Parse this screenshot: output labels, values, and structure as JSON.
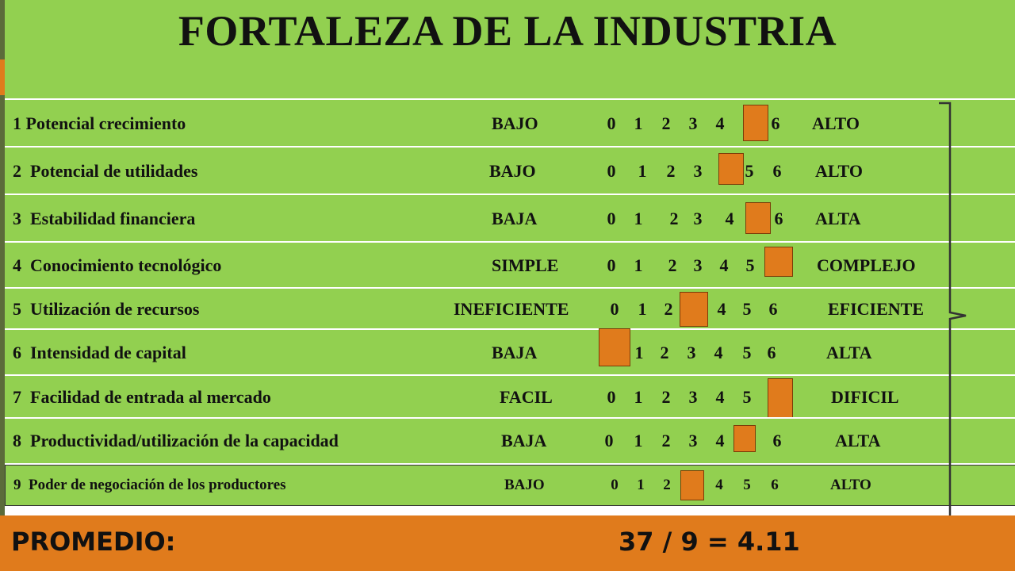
{
  "title": "FORTALEZA DE LA INDUSTRIA",
  "scale": [
    "0",
    "1",
    "2",
    "3",
    "4",
    "5",
    "6"
  ],
  "rows": [
    {
      "label": "1 Potencial crecimiento",
      "low": "BAJO",
      "high": "ALTO",
      "value": 5
    },
    {
      "label": "2  Potencial de utilidades",
      "low": "BAJO",
      "high": "ALTO",
      "value": 4
    },
    {
      "label": "3  Estabilidad financiera",
      "low": "BAJA",
      "high": "ALTA",
      "value": 5
    },
    {
      "label": "4  Conocimiento tecnológico",
      "low": "SIMPLE",
      "high": "COMPLEJO",
      "value": 6
    },
    {
      "label": "5  Utilización de recursos",
      "low": "INEFICIENTE",
      "high": "EFICIENTE",
      "value": 3
    },
    {
      "label": "6  Intensidad de capital",
      "low": "BAJA",
      "high": "ALTA",
      "value": 0
    },
    {
      "label": "7  Facilidad de entrada al mercado",
      "low": "FACIL",
      "high": "DIFICIL",
      "value": 6
    },
    {
      "label": "8  Productividad/utilización de la capacidad",
      "low": "BAJA",
      "high": "ALTA",
      "value": 5
    },
    {
      "label": "9  Poder de negociación de los productores",
      "low": "BAJO",
      "high": "ALTO",
      "value": 3
    }
  ],
  "promedio_label": "PROMEDIO:",
  "promedio_value": "37 / 9 = 4.11",
  "colors": {
    "green": "#92d050",
    "orange": "#e07b1c"
  }
}
